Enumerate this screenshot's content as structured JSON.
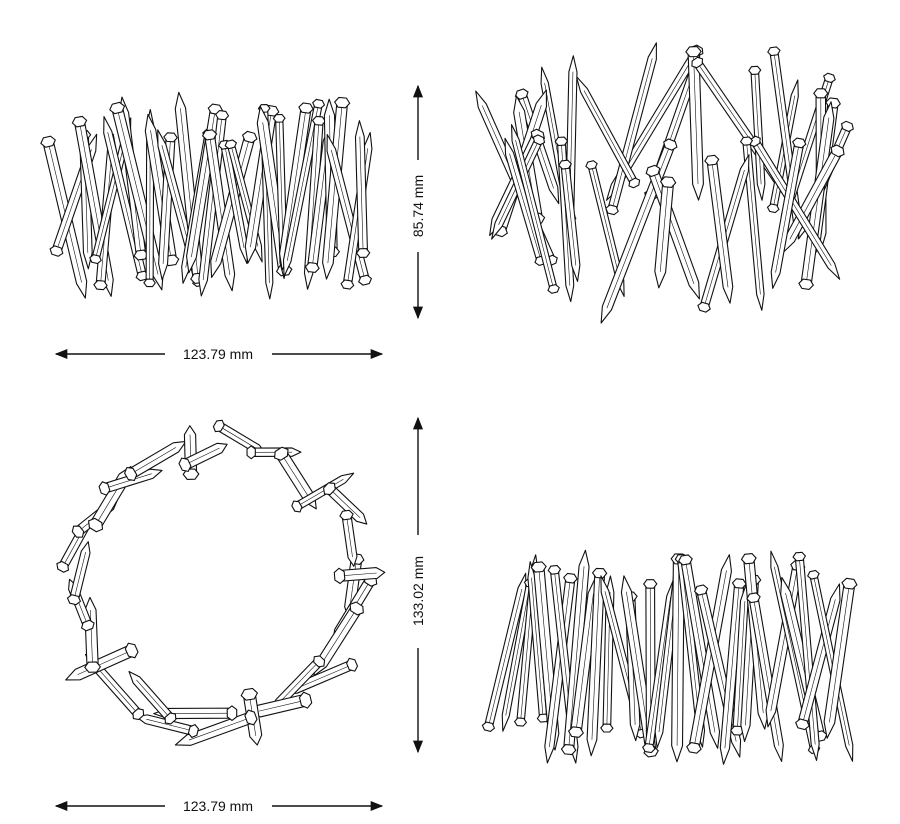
{
  "colors": {
    "line": "#111111",
    "stroke_fill": "#ffffff",
    "background": "#ffffff"
  },
  "dimensions": {
    "front_width": "123.79 mm",
    "front_height": "85.74 mm",
    "top_width": "123.79 mm",
    "top_depth": "133.02 mm"
  }
}
